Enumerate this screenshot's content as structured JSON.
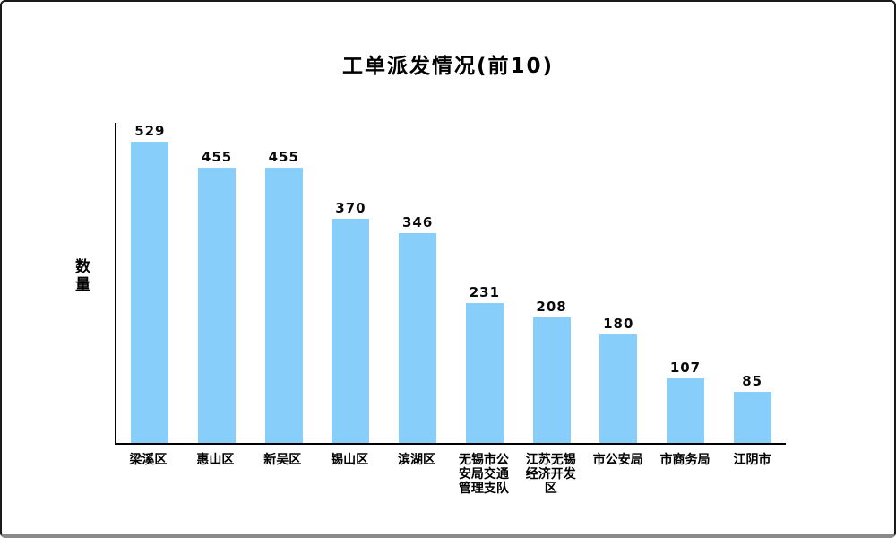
{
  "title": "工单派发情况(前10)",
  "colors": {
    "bar": "#87CEFA",
    "axis": "#000000",
    "text": "#000000"
  },
  "chart_data": {
    "type": "bar",
    "title": "工单派发情况(前10)",
    "xlabel": "",
    "ylabel": "数量",
    "categories": [
      "梁溪区",
      "惠山区",
      "新吴区",
      "锡山区",
      "滨湖区",
      "无锡市公安局交通管理支队",
      "江苏无锡经济开发区",
      "市公安局",
      "市商务局",
      "江阴市"
    ],
    "values": [
      529,
      455,
      455,
      370,
      346,
      231,
      208,
      180,
      107,
      85
    ],
    "ylim": [
      0,
      532
    ],
    "grid": false,
    "legend_position": "none",
    "bar_color": "#87CEFA",
    "value_labels_shown": true
  }
}
